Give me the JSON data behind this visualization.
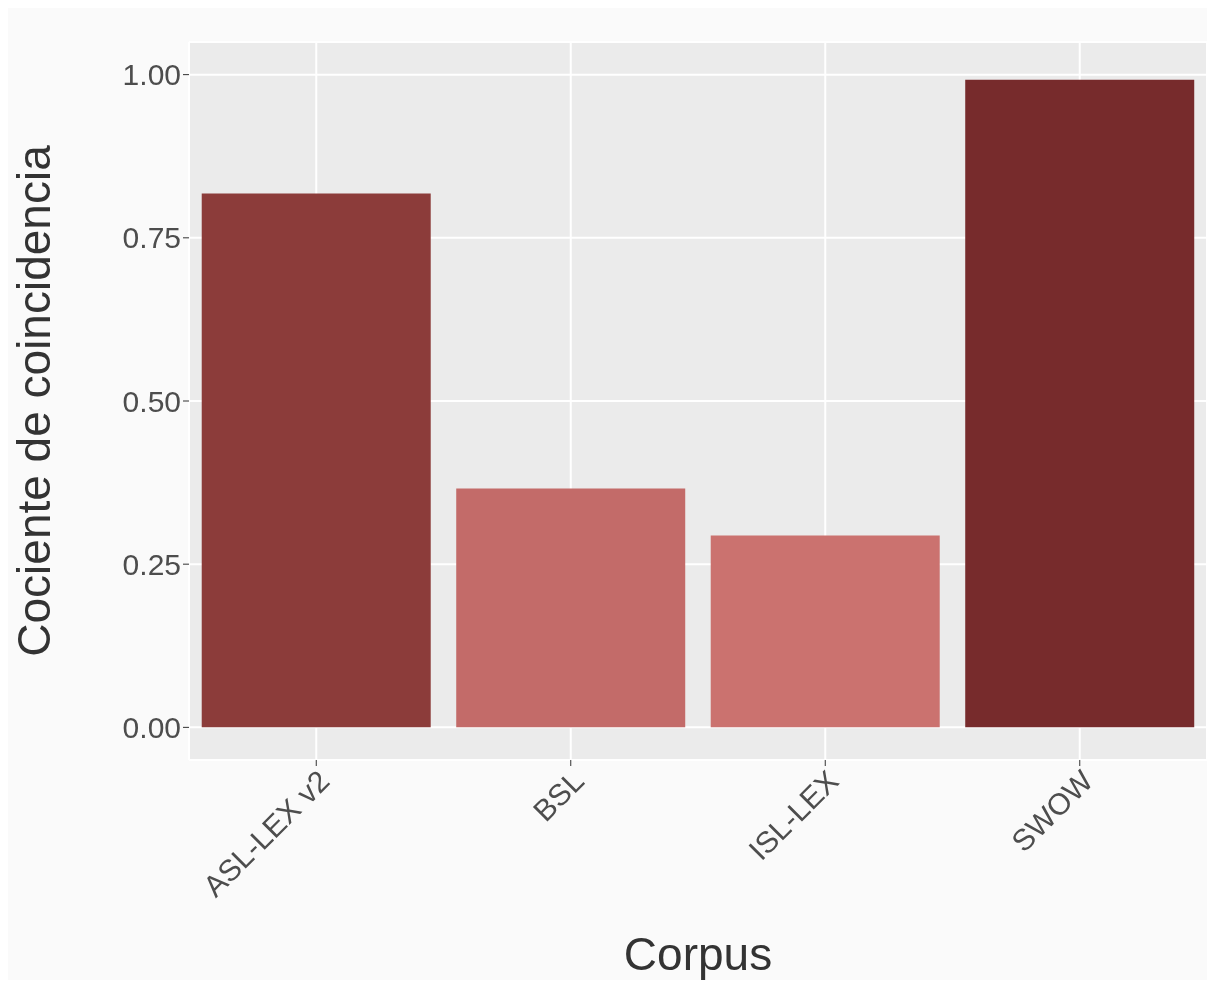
{
  "chart_data": {
    "type": "bar",
    "xlabel": "Corpus",
    "ylabel": "Cociente de coincidencia",
    "categories": [
      "ASL-LEX v2",
      "BSL",
      "ISL-LEX",
      "SWOW"
    ],
    "values": [
      0.818,
      0.366,
      0.294,
      0.992
    ],
    "colors": [
      "#8c3c3a",
      "#c36b69",
      "#cb726f",
      "#772b2c"
    ],
    "ylim": [
      -0.05,
      1.05
    ],
    "yticks": [
      {
        "value": 0,
        "label": "0.00"
      },
      {
        "value": 0.25,
        "label": "0.25"
      },
      {
        "value": 0.5,
        "label": "0.50"
      },
      {
        "value": 0.75,
        "label": "0.75"
      },
      {
        "value": 1,
        "label": "1.00"
      }
    ],
    "grid": true
  }
}
